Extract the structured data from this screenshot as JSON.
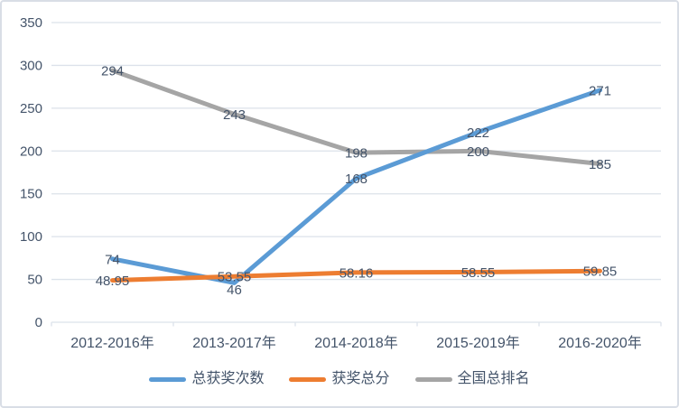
{
  "chart_data": {
    "type": "line",
    "title": "",
    "categories": [
      "2012-2016年",
      "2013-2017年",
      "2014-2018年",
      "2015-2019年",
      "2016-2020年"
    ],
    "series": [
      {
        "name": "总获奖次数",
        "color": "#5b9bd5",
        "values": [
          74,
          46,
          168,
          222,
          271
        ],
        "labels": [
          "74",
          "46",
          "168",
          "222",
          "271"
        ]
      },
      {
        "name": "获奖总分",
        "color": "#ed7d31",
        "values": [
          48.95,
          53.55,
          58.16,
          58.55,
          59.85
        ],
        "labels": [
          "48.95",
          "53.55",
          "58.16",
          "58.55",
          "59.85"
        ]
      },
      {
        "name": "全国总排名",
        "color": "#a5a5a5",
        "values": [
          294,
          243,
          198,
          200,
          185
        ],
        "labels": [
          "294",
          "243",
          "198",
          "200",
          "185"
        ]
      }
    ],
    "y_axis": {
      "min": 0,
      "max": 350,
      "step": 50,
      "tick_labels": [
        "0",
        "50",
        "100",
        "150",
        "200",
        "250",
        "300",
        "350"
      ]
    },
    "legend_position": "bottom",
    "grid": true,
    "colors": {
      "text": "#44546a",
      "gridline": "#dce2ea",
      "axis": "#dce2ea",
      "border": "#d9dee6",
      "background": "#ffffff"
    }
  }
}
